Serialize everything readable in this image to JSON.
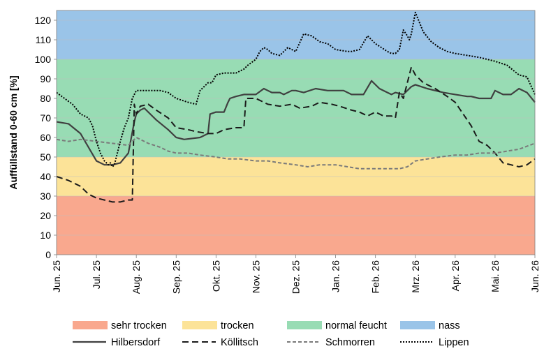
{
  "chart_data": {
    "type": "line",
    "title": "",
    "ylabel": "Auffüllstand 0-60 cm [%]",
    "xlabel": "",
    "ylim": [
      0,
      125
    ],
    "yticks": [
      0,
      10,
      20,
      30,
      40,
      50,
      60,
      70,
      80,
      90,
      100,
      110,
      120
    ],
    "x_tick_labels": [
      "Jun. 25",
      "Jul. 25",
      "Aug. 25",
      "Sep. 25",
      "Okt. 25",
      "Nov. 25",
      "Dez. 25",
      "Jan. 26",
      "Feb. 26",
      "Mrz. 26",
      "Apr. 26",
      "Mai. 26",
      "Jun. 26"
    ],
    "xlim": [
      0,
      12
    ],
    "grid": true,
    "bands": [
      {
        "name": "sehr trocken",
        "from": 0,
        "to": 30,
        "color": "#f9a88e"
      },
      {
        "name": "trocken",
        "from": 30,
        "to": 50,
        "color": "#fce398"
      },
      {
        "name": "normal feucht",
        "from": 50,
        "to": 100,
        "color": "#98dcb4"
      },
      {
        "name": "nass",
        "from": 100,
        "to": 125,
        "color": "#9ac4e8"
      }
    ],
    "series": [
      {
        "name": "Hilbersdorf",
        "style": "solid",
        "color": "#404040",
        "x": [
          0,
          0.3,
          0.6,
          0.8,
          1.0,
          1.2,
          1.4,
          1.6,
          1.8,
          1.95,
          2.0,
          2.1,
          2.2,
          2.3,
          2.5,
          2.8,
          3.0,
          3.2,
          3.6,
          3.8,
          3.85,
          4.0,
          4.2,
          4.3,
          4.35,
          4.5,
          4.7,
          5.0,
          5.2,
          5.4,
          5.6,
          5.7,
          5.9,
          6.0,
          6.2,
          6.5,
          6.8,
          7.0,
          7.2,
          7.4,
          7.5,
          7.7,
          7.9,
          8.1,
          8.3,
          8.4,
          8.5,
          8.7,
          8.9,
          9.0,
          9.3,
          9.7,
          10.0,
          10.3,
          10.4,
          10.6,
          10.9,
          11.0,
          11.2,
          11.4,
          11.6,
          11.8,
          12.0
        ],
        "y": [
          68,
          67,
          62,
          55,
          48,
          46,
          46,
          47,
          52,
          68,
          72,
          74,
          75,
          73,
          69,
          64,
          60,
          59,
          60,
          62,
          72,
          73,
          73,
          78,
          80,
          81,
          82,
          82,
          85,
          83,
          83,
          82,
          84,
          84,
          83,
          85,
          84,
          84,
          84,
          82,
          82,
          82,
          89,
          85,
          83,
          82,
          83,
          82,
          86,
          87,
          85,
          83,
          82,
          81,
          81,
          80,
          80,
          84,
          82,
          82,
          85,
          83,
          78
        ]
      },
      {
        "name": "Köllitsch",
        "style": "dashed",
        "color": "#1a1a1a",
        "x": [
          0,
          0.3,
          0.6,
          0.8,
          1.0,
          1.2,
          1.4,
          1.6,
          1.8,
          1.9,
          1.95,
          2.0,
          2.1,
          2.3,
          2.5,
          2.8,
          3.0,
          3.3,
          3.5,
          3.8,
          4.0,
          4.2,
          4.5,
          4.7,
          4.75,
          5.0,
          5.3,
          5.6,
          5.9,
          6.1,
          6.4,
          6.6,
          6.9,
          7.1,
          7.4,
          7.6,
          7.8,
          8.0,
          8.2,
          8.4,
          8.5,
          8.6,
          8.7,
          8.9,
          9.0,
          9.2,
          9.5,
          9.8,
          10.0,
          10.2,
          10.4,
          10.6,
          10.8,
          11.0,
          11.2,
          11.4,
          11.6,
          11.8,
          12.0
        ],
        "y": [
          40,
          38,
          35,
          31,
          29,
          28,
          27,
          27,
          28,
          28,
          77,
          72,
          76,
          77,
          74,
          70,
          65,
          64,
          63,
          62,
          62,
          64,
          65,
          65,
          80,
          80,
          77,
          76,
          77,
          75,
          76,
          78,
          77,
          76,
          74,
          73,
          71,
          73,
          71,
          71,
          70,
          83,
          80,
          96,
          92,
          88,
          85,
          81,
          78,
          72,
          66,
          58,
          56,
          52,
          47,
          46,
          45,
          46,
          49
        ]
      },
      {
        "name": "Schmorren",
        "style": "dashed-gray",
        "color": "#7a7a7a",
        "x": [
          0,
          0.3,
          0.6,
          1.0,
          1.4,
          1.8,
          2.0,
          2.3,
          2.6,
          2.8,
          3.0,
          3.3,
          3.6,
          4.0,
          4.3,
          4.6,
          5.0,
          5.3,
          5.6,
          6.0,
          6.3,
          6.6,
          7.0,
          7.3,
          7.6,
          8.0,
          8.4,
          8.6,
          8.8,
          9.0,
          9.3,
          9.6,
          10.0,
          10.3,
          10.6,
          11.0,
          11.3,
          11.6,
          12.0
        ],
        "y": [
          59,
          58,
          59,
          58,
          57,
          56,
          60,
          57,
          55,
          53,
          52,
          52,
          51,
          50,
          49,
          49,
          48,
          48,
          47,
          46,
          45,
          46,
          46,
          45,
          44,
          44,
          44,
          44,
          45,
          48,
          49,
          50,
          51,
          51,
          52,
          52,
          53,
          54,
          57
        ]
      },
      {
        "name": "Lippen",
        "style": "dotted",
        "color": "#000000",
        "x": [
          0,
          0.2,
          0.4,
          0.6,
          0.8,
          0.9,
          1.0,
          1.1,
          1.2,
          1.3,
          1.35,
          1.4,
          1.45,
          1.5,
          1.6,
          1.7,
          1.8,
          1.85,
          1.9,
          2.0,
          2.3,
          2.6,
          2.8,
          3.0,
          3.3,
          3.5,
          3.6,
          3.7,
          3.8,
          3.9,
          4.0,
          4.2,
          4.5,
          4.7,
          4.8,
          5.0,
          5.1,
          5.2,
          5.3,
          5.4,
          5.6,
          5.8,
          5.9,
          6.0,
          6.2,
          6.4,
          6.6,
          6.8,
          7.0,
          7.3,
          7.4,
          7.6,
          7.8,
          8.0,
          8.3,
          8.4,
          8.5,
          8.6,
          8.7,
          8.8,
          8.85,
          8.9,
          9.0,
          9.2,
          9.4,
          9.6,
          9.8,
          10.0,
          10.3,
          10.6,
          11.0,
          11.3,
          11.6,
          11.8,
          12.0
        ],
        "y": [
          83,
          80,
          77,
          72,
          70,
          66,
          58,
          52,
          48,
          46,
          47,
          45,
          46,
          50,
          58,
          65,
          70,
          75,
          80,
          84,
          84,
          84,
          83,
          80,
          78,
          77,
          84,
          86,
          88,
          88,
          92,
          93,
          93,
          95,
          97,
          100,
          104,
          106,
          105,
          103,
          102,
          106,
          105,
          104,
          113,
          112,
          109,
          108,
          105,
          104,
          104,
          105,
          112,
          108,
          104,
          103,
          103,
          105,
          115,
          112,
          110,
          113,
          124,
          114,
          109,
          106,
          104,
          103,
          102,
          101,
          99,
          97,
          92,
          91,
          82
        ]
      }
    ],
    "legend": {
      "placement": "bottom",
      "entries": [
        "sehr trocken",
        "trocken",
        "normal feucht",
        "nass",
        "Hilbersdorf",
        "Köllitsch",
        "Schmorren",
        "Lippen"
      ]
    }
  }
}
